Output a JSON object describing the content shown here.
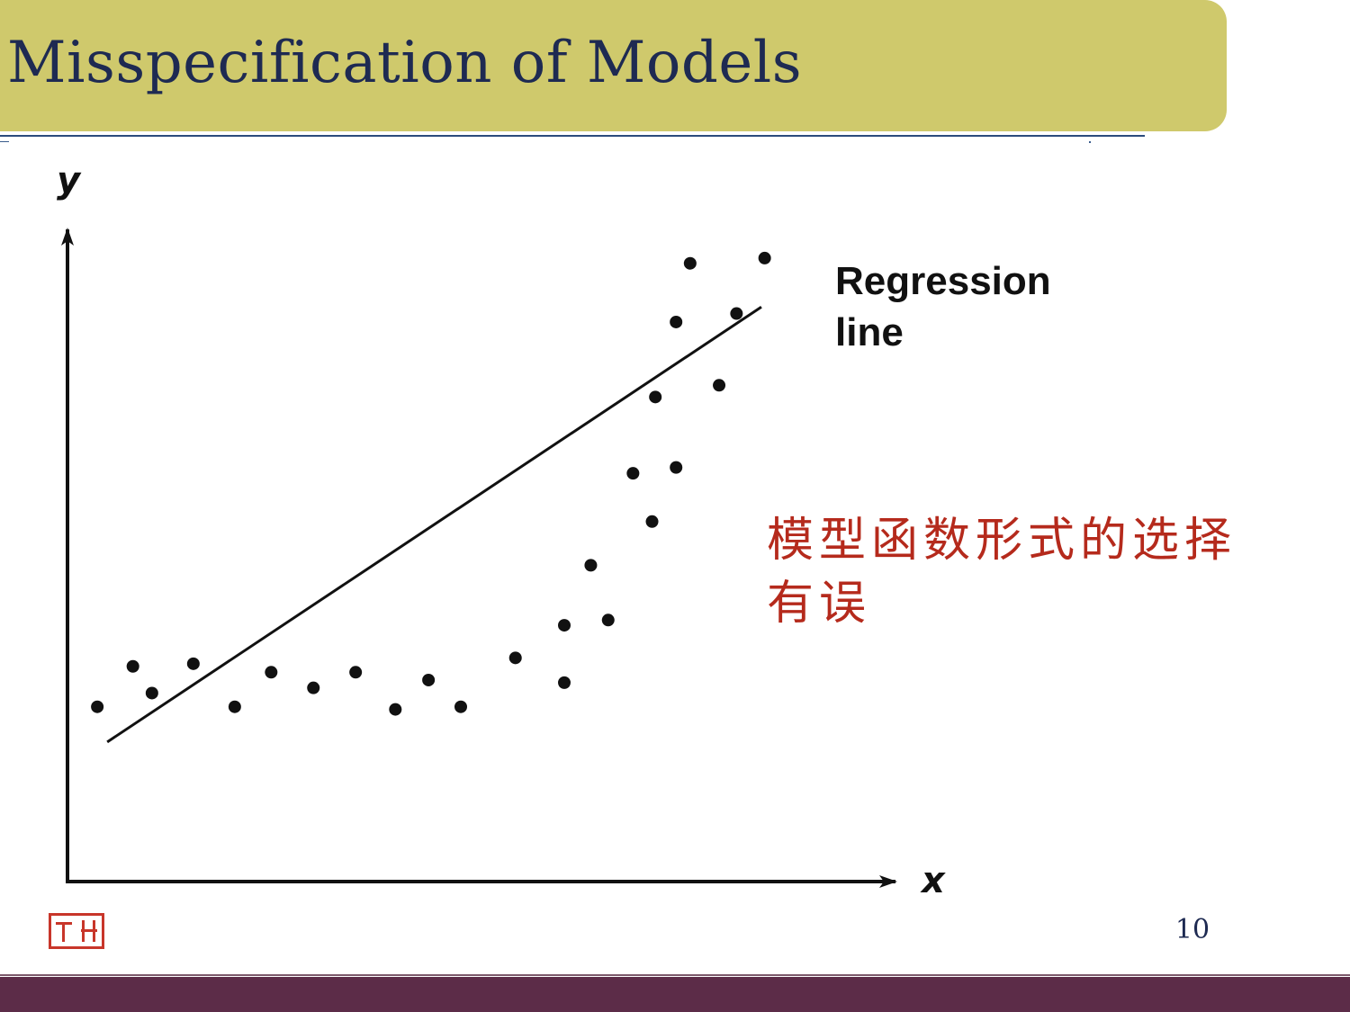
{
  "slide": {
    "title": "Misspecification of Models",
    "note": "模型函数形式的选择有误",
    "page_number": "10",
    "colors": {
      "title_band": "#cfc96c",
      "title_text": "#1e2a52",
      "note_text": "#b52a1c",
      "footer_band": "#5c2c48",
      "seal": "#c8362a"
    }
  },
  "chart_data": {
    "type": "scatter",
    "xlabel": "x",
    "ylabel": "y",
    "xlim": [
      0,
      10
    ],
    "ylim": [
      0,
      10
    ],
    "axis_ticks": false,
    "grid": false,
    "points": [
      {
        "x": 0.36,
        "y": 2.68
      },
      {
        "x": 0.79,
        "y": 3.3
      },
      {
        "x": 1.02,
        "y": 2.89
      },
      {
        "x": 1.52,
        "y": 3.34
      },
      {
        "x": 2.02,
        "y": 2.68
      },
      {
        "x": 2.46,
        "y": 3.21
      },
      {
        "x": 2.97,
        "y": 2.97
      },
      {
        "x": 3.48,
        "y": 3.21
      },
      {
        "x": 3.96,
        "y": 2.64
      },
      {
        "x": 4.36,
        "y": 3.09
      },
      {
        "x": 4.75,
        "y": 2.68
      },
      {
        "x": 5.41,
        "y": 3.43
      },
      {
        "x": 6.0,
        "y": 3.05
      },
      {
        "x": 6.0,
        "y": 3.93
      },
      {
        "x": 6.32,
        "y": 4.85
      },
      {
        "x": 6.53,
        "y": 4.01
      },
      {
        "x": 6.83,
        "y": 6.26
      },
      {
        "x": 7.06,
        "y": 5.52
      },
      {
        "x": 7.1,
        "y": 7.43
      },
      {
        "x": 7.35,
        "y": 6.35
      },
      {
        "x": 7.35,
        "y": 8.58
      },
      {
        "x": 7.52,
        "y": 9.48
      },
      {
        "x": 7.87,
        "y": 7.61
      },
      {
        "x": 8.08,
        "y": 8.71
      },
      {
        "x": 8.42,
        "y": 9.56
      }
    ],
    "fit_line": {
      "x": [
        0.48,
        8.38
      ],
      "y": 2.14,
      "y_end": 8.81
    },
    "annotations": [
      {
        "text": "Regression",
        "line": 1
      },
      {
        "text": "line",
        "line": 2
      }
    ]
  }
}
